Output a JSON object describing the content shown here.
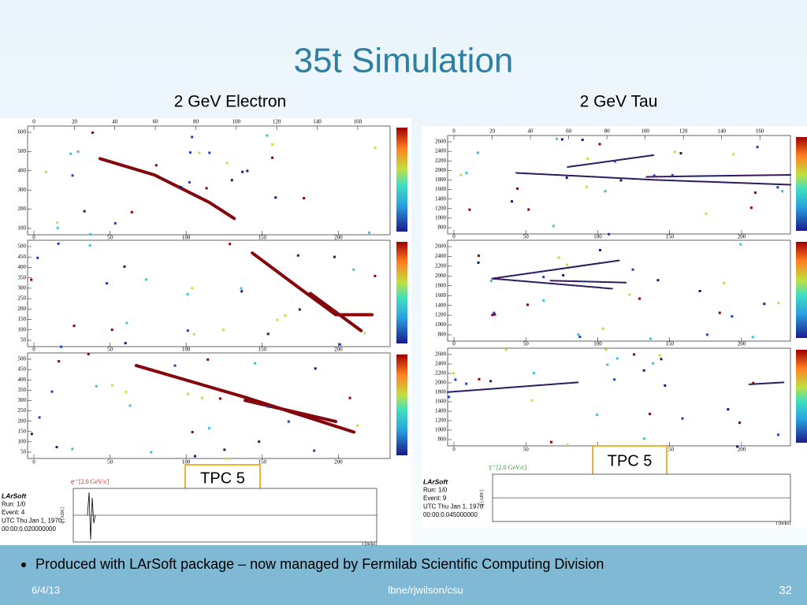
{
  "header": {
    "title": "35t Simulation"
  },
  "panels": [
    {
      "label": "2 GeV Electron",
      "tpc_label": "TPC 5",
      "particle": "e⁻",
      "momentum": "[2.0 GeV/c]",
      "info": [
        "LArSoft",
        "Run:   1/0",
        "Event: 4",
        "UTC Thu Jan 1, 1970",
        "00:00:0.020000000"
      ],
      "waveform_ylabel": "q [ADC]",
      "waveform_xlabel": "t [ticks]",
      "top_ticks": [
        0,
        20,
        40,
        60,
        80,
        100,
        120,
        140,
        160
      ],
      "bottom_ticks": [
        0,
        50,
        100,
        150,
        200
      ],
      "y_ticks": [
        [
          100,
          200,
          300,
          400,
          500,
          600
        ],
        [
          50,
          100,
          150,
          200,
          250,
          300,
          350,
          400,
          450,
          500
        ],
        [
          50,
          100,
          150,
          200,
          250,
          300,
          350,
          400,
          450,
          500
        ]
      ]
    },
    {
      "label": "2 GeV Tau",
      "tpc_label": "TPC 5",
      "particle": "τ⁻",
      "momentum": "[2.0 GeV/c]",
      "info": [
        "LArSoft",
        "Run:   1/0",
        "Event: 9",
        "UTC Thu Jan 1, 1970",
        "00:00:0.045000000"
      ],
      "waveform_ylabel": "q [ADC]",
      "waveform_xlabel": "t [ticks]",
      "top_ticks": [
        0,
        20,
        40,
        60,
        80,
        100,
        120,
        140,
        160
      ],
      "bottom_ticks": [
        0,
        50,
        100,
        150,
        200
      ],
      "y_ticks": [
        [
          800,
          1000,
          1200,
          1400,
          1600,
          1800,
          2000,
          2200,
          2400,
          2600
        ],
        [
          800,
          1000,
          1200,
          1400,
          1600,
          1800,
          2000,
          2200,
          2400,
          2600
        ],
        [
          800,
          1000,
          1200,
          1400,
          1600,
          1800,
          2000,
          2200,
          2400,
          2600
        ]
      ]
    }
  ],
  "bullets": [
    "Produced with LArSoft package – now managed by Fermilab Scientific Computing Division"
  ],
  "footer": {
    "date": "6/4/13",
    "center": "lbne/rjwilson/csu",
    "page": "32"
  }
}
